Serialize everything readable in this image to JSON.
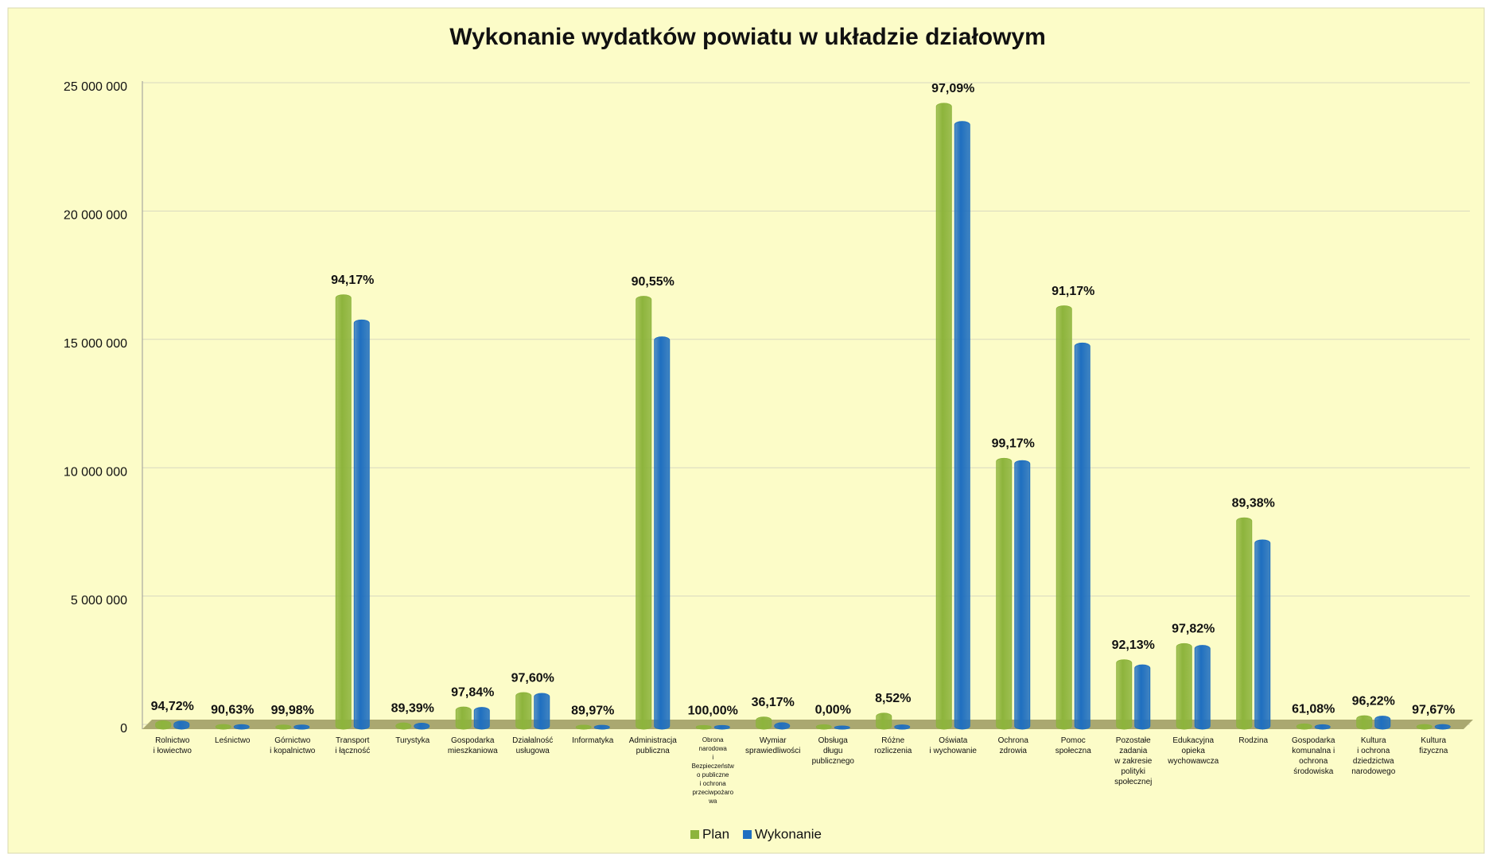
{
  "chart_data": {
    "type": "bar",
    "title": "Wykonanie wydatków powiatu w układzie działowym",
    "categories": [
      "Rolnictwo\ni łowiectwo",
      "Leśnictwo",
      "Górnictwo\ni kopalnictwo",
      "Transport\ni łączność",
      "Turystyka",
      "Gospodarka\nmieszkaniowa",
      "Działalność\nusługowa",
      "Informatyka",
      "Administracja\npubliczna",
      "Obrona\nnarodowa\ni\nBezpieczeństw\no publiczne\ni ochrona\nprzeciwpożaro\nwa",
      "Wymiar\nsprawiedliwości",
      "Obsługa\ndługu\npublicznego",
      "Różne\nrozliczenia",
      "Oświata\ni wychowanie",
      "Ochrona\nzdrowia",
      "Pomoc\nspołeczna",
      "Pozostałe\nzadania\nw zakresie\npolityki\nspołecznej",
      "Edukacyjna\nopieka\nwychowawcza",
      "Rodzina",
      "Gospodarka\nkomunalna i\nochrona\nśrodowiska",
      "Kultura\ni ochrona\ndziedzictwa\nnarodowego",
      "Kultura\nfizyczna"
    ],
    "series": [
      {
        "name": "Plan",
        "color": "#8db43c",
        "values": [
          200000,
          60000,
          40000,
          16800000,
          120000,
          740000,
          1300000,
          30000,
          16740000,
          20000,
          350000,
          50000,
          500000,
          24260000,
          10430000,
          16370000,
          2580000,
          3210000,
          8110000,
          80000,
          400000,
          60000
        ]
      },
      {
        "name": "Wykonanie",
        "color": "#1f6fc0",
        "values": [
          190000,
          54000,
          40000,
          15820000,
          107000,
          724000,
          1269000,
          27000,
          15160000,
          20000,
          127000,
          0,
          42600,
          23550000,
          10340000,
          14920000,
          2380000,
          3140000,
          7250000,
          49000,
          385000,
          58600
        ]
      }
    ],
    "percent_labels": [
      "94,72%",
      "90,63%",
      "99,98%",
      "94,17%",
      "89,39%",
      "97,84%",
      "97,60%",
      "89,97%",
      "90,55%",
      "100,00%",
      "36,17%",
      "0,00%",
      "8,52%",
      "97,09%",
      "99,17%",
      "91,17%",
      "92,13%",
      "97,82%",
      "89,38%",
      "61,08%",
      "96,22%",
      "97,67%"
    ],
    "ylim": [
      0,
      25000000
    ],
    "yticks": [
      0,
      {
        "value": 5000000,
        "label": "5 000 000"
      },
      {
        "value": 10000000,
        "label": "10 000 000"
      },
      {
        "value": 15000000,
        "label": "15 000 000"
      },
      {
        "value": 20000000,
        "label": "20 000 000"
      },
      {
        "value": 25000000,
        "label": "25 000 000"
      }
    ],
    "grid": true
  }
}
